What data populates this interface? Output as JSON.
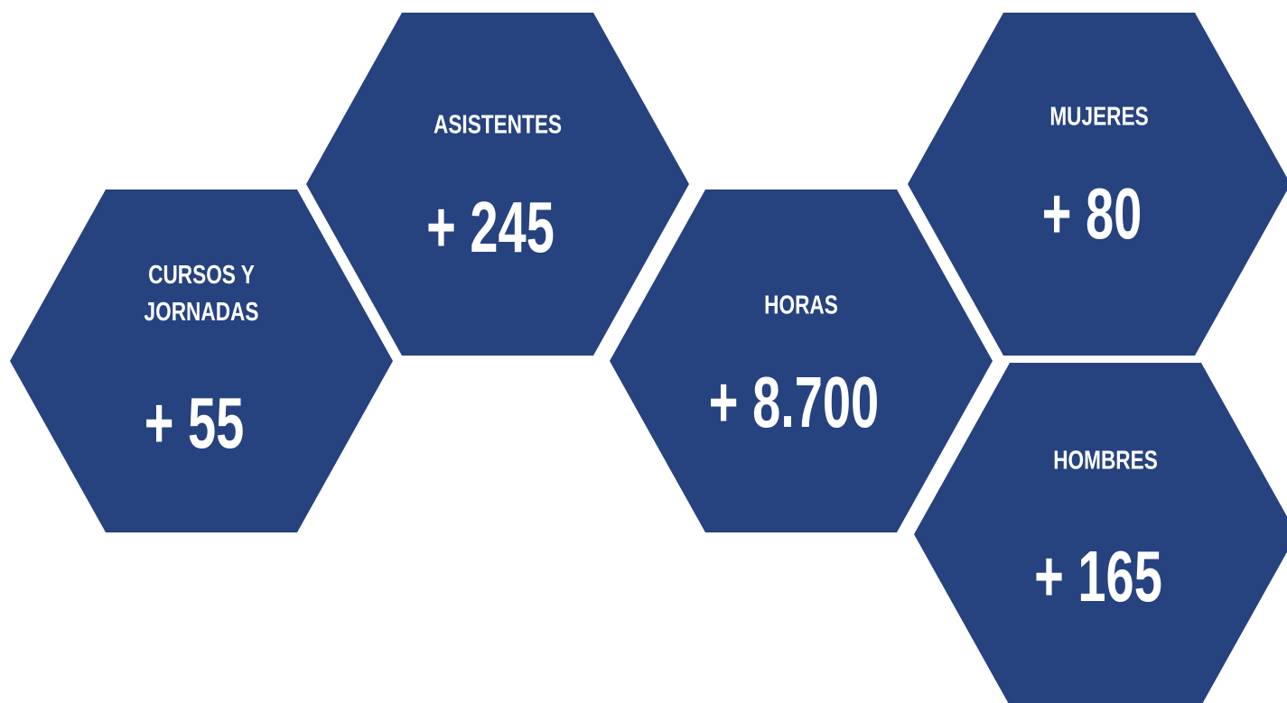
{
  "hexagons": [
    {
      "label": [
        "CURSOS Y",
        "JORNADAS"
      ],
      "value": "+ 55"
    },
    {
      "label": [
        "ASISTENTES"
      ],
      "value": "+ 245"
    },
    {
      "label": [
        "HORAS"
      ],
      "value": "+ 8.700"
    },
    {
      "label": [
        "MUJERES"
      ],
      "value": "+ 80"
    },
    {
      "label": [
        "HOMBRES"
      ],
      "value": "+ 165"
    }
  ]
}
